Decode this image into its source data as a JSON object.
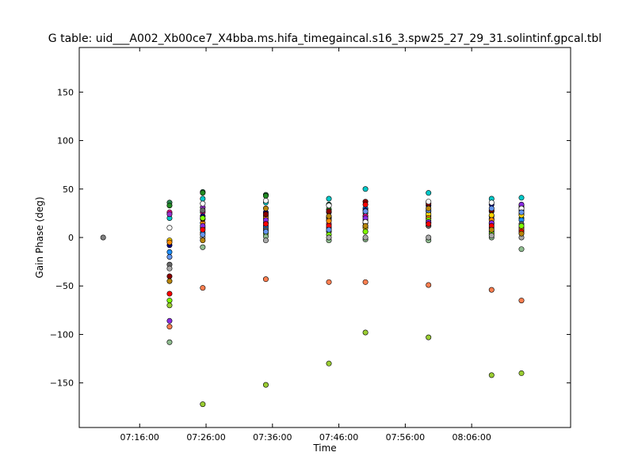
{
  "chart_data": {
    "type": "scatter",
    "title": "G table: uid___A002_Xb00ce7_X4bba.ms.hifa_timegaincal.s16_3.spw25_27_29_31.solintinf.gpcal.tbl",
    "xlabel": "Time",
    "ylabel": "Gain Phase (deg)",
    "xlim": [
      "07:06:54",
      "08:20:54"
    ],
    "ylim": [
      -196,
      196
    ],
    "grid": false,
    "legend": "none",
    "x_ticks": [
      "07:16:00",
      "07:26:00",
      "07:36:00",
      "07:46:00",
      "07:56:00",
      "08:06:00"
    ],
    "y_ticks": [
      -150,
      -100,
      -50,
      0,
      50,
      100,
      150
    ],
    "series": [
      {
        "color": "#808080",
        "points": [
          [
            "07:10:30",
            0
          ]
        ]
      },
      {
        "color": "#00c8c8",
        "points": [
          [
            "07:20:30",
            20
          ],
          [
            "07:25:30",
            40
          ],
          [
            "07:35:00",
            36
          ],
          [
            "07:44:30",
            40
          ],
          [
            "07:50:00",
            50
          ],
          [
            "07:59:30",
            46
          ],
          [
            "08:09:00",
            40
          ],
          [
            "08:13:30",
            41
          ]
        ]
      },
      {
        "color": "#2e8b57",
        "points": [
          [
            "07:20:30",
            36
          ],
          [
            "07:25:30",
            47
          ],
          [
            "07:35:00",
            44
          ],
          [
            "07:44:30",
            34
          ],
          [
            "07:50:00",
            25
          ],
          [
            "07:59:30",
            27
          ],
          [
            "08:09:00",
            27
          ],
          [
            "08:13:30",
            24
          ]
        ]
      },
      {
        "color": "#228b22",
        "points": [
          [
            "07:20:30",
            33
          ],
          [
            "07:25:30",
            46
          ],
          [
            "07:35:00",
            43
          ],
          [
            "07:44:30",
            29
          ],
          [
            "07:50:00",
            22
          ],
          [
            "07:59:30",
            22
          ],
          [
            "08:09:00",
            22
          ],
          [
            "08:13:30",
            20
          ]
        ]
      },
      {
        "color": "#ff1493",
        "points": [
          [
            "07:20:30",
            26
          ],
          [
            "07:25:30",
            26
          ],
          [
            "07:35:00",
            12
          ],
          [
            "07:44:30",
            14
          ],
          [
            "07:50:00",
            22
          ],
          [
            "07:59:30",
            15
          ],
          [
            "08:09:00",
            14
          ],
          [
            "08:13:30",
            10
          ]
        ]
      },
      {
        "color": "#9932cc",
        "points": [
          [
            "07:20:30",
            24
          ],
          [
            "07:25:30",
            31
          ],
          [
            "07:35:00",
            15
          ],
          [
            "07:44:30",
            26
          ],
          [
            "07:50:00",
            18
          ],
          [
            "07:59:30",
            20
          ],
          [
            "08:09:00",
            19
          ],
          [
            "08:13:30",
            33
          ]
        ]
      },
      {
        "color": "#1e90ff",
        "points": [
          [
            "07:20:30",
            -15
          ],
          [
            "07:25:30",
            5
          ],
          [
            "07:35:00",
            10
          ],
          [
            "07:44:30",
            20
          ],
          [
            "07:50:00",
            30
          ],
          [
            "07:59:30",
            12
          ],
          [
            "08:09:00",
            6
          ],
          [
            "08:13:30",
            18
          ]
        ]
      },
      {
        "color": "#000080",
        "points": [
          [
            "07:20:30",
            -8
          ],
          [
            "07:25:30",
            22
          ],
          [
            "07:35:00",
            26
          ],
          [
            "07:44:30",
            21
          ],
          [
            "07:50:00",
            28
          ],
          [
            "07:59:30",
            33
          ],
          [
            "08:09:00",
            34
          ],
          [
            "08:13:30",
            28
          ]
        ]
      },
      {
        "color": "#ffd700",
        "points": [
          [
            "07:20:30",
            -3
          ],
          [
            "07:25:30",
            10
          ],
          [
            "07:35:00",
            22
          ],
          [
            "07:44:30",
            18
          ],
          [
            "07:50:00",
            10
          ],
          [
            "07:59:30",
            24
          ],
          [
            "08:09:00",
            23
          ],
          [
            "08:13:30",
            23
          ]
        ]
      },
      {
        "color": "#ff8c00",
        "points": [
          [
            "07:20:30",
            -5
          ],
          [
            "07:25:30",
            15
          ],
          [
            "07:35:00",
            20
          ],
          [
            "07:44:30",
            17
          ],
          [
            "07:50:00",
            12
          ],
          [
            "07:59:30",
            20
          ],
          [
            "08:09:00",
            18
          ],
          [
            "08:13:30",
            8
          ]
        ]
      },
      {
        "color": "#8b0000",
        "points": [
          [
            "07:20:30",
            -40
          ],
          [
            "07:25:30",
            19
          ],
          [
            "07:35:00",
            24
          ],
          [
            "07:44:30",
            27
          ],
          [
            "07:50:00",
            37
          ],
          [
            "07:59:30",
            35
          ],
          [
            "08:09:00",
            28
          ],
          [
            "08:13:30",
            31
          ]
        ]
      },
      {
        "color": "#696969",
        "points": [
          [
            "07:20:30",
            -28
          ],
          [
            "07:25:30",
            28
          ],
          [
            "07:35:00",
            8
          ],
          [
            "07:44:30",
            6
          ],
          [
            "07:50:00",
            15
          ],
          [
            "07:59:30",
            12
          ],
          [
            "08:09:00",
            10
          ],
          [
            "08:13:30",
            14
          ]
        ]
      },
      {
        "color": "#7fff00",
        "points": [
          [
            "07:20:30",
            -65
          ],
          [
            "07:25:30",
            20
          ],
          [
            "07:35:00",
            4
          ],
          [
            "07:44:30",
            3
          ],
          [
            "07:50:00",
            6
          ],
          [
            "07:59:30",
            18
          ],
          [
            "08:09:00",
            4
          ],
          [
            "08:13:30",
            12
          ]
        ]
      },
      {
        "color": "#ff7f50",
        "points": [
          [
            "07:20:30",
            -92
          ],
          [
            "07:25:30",
            -52
          ],
          [
            "07:35:00",
            -43
          ],
          [
            "07:44:30",
            -46
          ],
          [
            "07:50:00",
            -46
          ],
          [
            "07:59:30",
            -49
          ],
          [
            "08:09:00",
            -54
          ],
          [
            "08:13:30",
            -65
          ]
        ]
      },
      {
        "color": "#9acd32",
        "points": [
          [
            "07:20:30",
            -70
          ],
          [
            "07:25:30",
            -172
          ],
          [
            "07:35:00",
            -152
          ],
          [
            "07:44:30",
            -130
          ],
          [
            "07:50:00",
            -98
          ],
          [
            "07:59:30",
            -103
          ],
          [
            "08:09:00",
            -142
          ],
          [
            "08:13:30",
            -140
          ]
        ]
      },
      {
        "color": "#8fbc8f",
        "points": [
          [
            "07:20:30",
            -108
          ],
          [
            "07:25:30",
            -10
          ],
          [
            "07:35:00",
            1
          ],
          [
            "07:44:30",
            -3
          ],
          [
            "07:50:00",
            -2
          ],
          [
            "07:59:30",
            -3
          ],
          [
            "08:09:00",
            0
          ],
          [
            "08:13:30",
            -12
          ]
        ]
      },
      {
        "color": "#8a2be2",
        "points": [
          [
            "07:20:30",
            -86
          ],
          [
            "07:25:30",
            12
          ],
          [
            "07:35:00",
            18
          ],
          [
            "07:44:30",
            10
          ],
          [
            "07:50:00",
            20
          ],
          [
            "07:59:30",
            16
          ],
          [
            "08:09:00",
            15
          ],
          [
            "08:13:30",
            34
          ]
        ]
      },
      {
        "color": "#ff0000",
        "points": [
          [
            "07:20:30",
            -58
          ],
          [
            "07:25:30",
            8
          ],
          [
            "07:35:00",
            14
          ],
          [
            "07:44:30",
            12
          ],
          [
            "07:50:00",
            34
          ],
          [
            "07:59:30",
            14
          ],
          [
            "08:09:00",
            12
          ],
          [
            "08:13:30",
            6
          ]
        ]
      },
      {
        "color": "#ffffff",
        "points": [
          [
            "07:20:30",
            10
          ],
          [
            "07:25:30",
            35
          ],
          [
            "07:35:00",
            38
          ],
          [
            "07:44:30",
            33
          ],
          [
            "07:50:00",
            16
          ],
          [
            "07:59:30",
            37
          ],
          [
            "08:09:00",
            36
          ],
          [
            "08:13:30",
            30
          ]
        ]
      },
      {
        "color": "#a9a9a9",
        "points": [
          [
            "07:20:30",
            -32
          ],
          [
            "07:25:30",
            0
          ],
          [
            "07:35:00",
            -3
          ],
          [
            "07:44:30",
            0
          ],
          [
            "07:50:00",
            0
          ],
          [
            "07:59:30",
            0
          ],
          [
            "08:09:00",
            2
          ],
          [
            "08:13:30",
            0
          ]
        ]
      },
      {
        "color": "#6495ed",
        "points": [
          [
            "07:20:30",
            -20
          ],
          [
            "07:25:30",
            3
          ],
          [
            "07:35:00",
            6
          ],
          [
            "07:44:30",
            8
          ],
          [
            "07:50:00",
            27
          ],
          [
            "07:59:30",
            28
          ],
          [
            "08:09:00",
            30
          ],
          [
            "08:13:30",
            26
          ]
        ]
      },
      {
        "color": "#b8860b",
        "points": [
          [
            "07:20:30",
            -45
          ],
          [
            "07:25:30",
            -3
          ],
          [
            "07:35:00",
            30
          ],
          [
            "07:44:30",
            22
          ],
          [
            "07:50:00",
            12
          ],
          [
            "07:59:30",
            30
          ],
          [
            "08:09:00",
            8
          ],
          [
            "08:13:30",
            4
          ]
        ]
      }
    ]
  }
}
